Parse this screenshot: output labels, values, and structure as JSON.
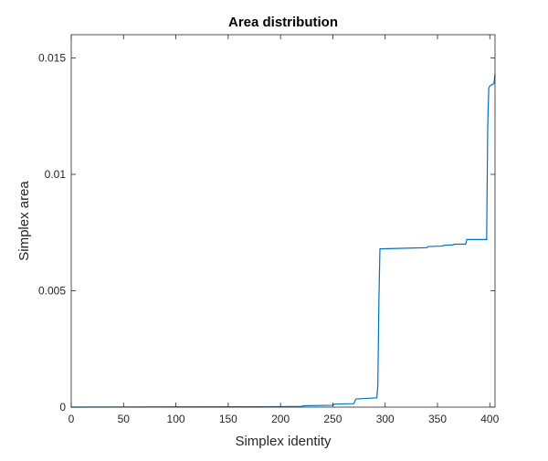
{
  "chart_data": {
    "type": "line",
    "title": "Area distribution",
    "xlabel": "Simplex identity",
    "ylabel": "Simplex area",
    "xlim": [
      0,
      405
    ],
    "ylim": [
      0,
      0.016
    ],
    "xticks": [
      0,
      50,
      100,
      150,
      200,
      250,
      300,
      350,
      400
    ],
    "xtick_labels": [
      "0",
      "50",
      "100",
      "150",
      "200",
      "250",
      "300",
      "350",
      "400"
    ],
    "yticks": [
      0,
      0.005,
      0.01,
      0.015
    ],
    "ytick_labels": [
      "0",
      "0.005",
      "0.01",
      "0.015"
    ],
    "grid": false,
    "line_color": "#0072BD",
    "series": [
      {
        "x": [
          0,
          100,
          200,
          220,
          222,
          250,
          252,
          270,
          272,
          292,
          293,
          294,
          295,
          320,
          340,
          341,
          355,
          356,
          365,
          366,
          377,
          378,
          397,
          398,
          399,
          400,
          404,
          405
        ],
        "y": [
          0,
          1e-05,
          2e-05,
          3e-05,
          6e-05,
          8e-05,
          0.00013,
          0.00015,
          0.00035,
          0.0004,
          0.0009,
          0.0045,
          0.0068,
          0.00683,
          0.00685,
          0.0069,
          0.00692,
          0.00695,
          0.00697,
          0.007,
          0.007,
          0.0072,
          0.0072,
          0.012,
          0.0137,
          0.0138,
          0.0139,
          0.0143
        ]
      }
    ]
  }
}
